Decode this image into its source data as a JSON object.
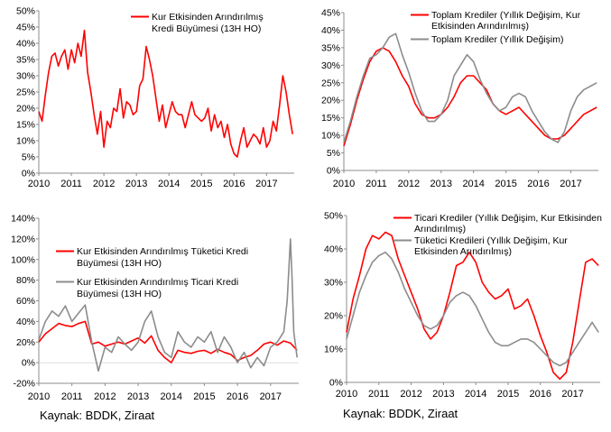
{
  "colors": {
    "red": "#FF0000",
    "gray": "#8C8C8C",
    "axis": "#8C8C8C"
  },
  "sources": {
    "left": "Kaynak: BDDK, Ziraat",
    "right": "Kaynak: BDDK, Ziraat"
  },
  "chart_data": [
    {
      "type": "line",
      "title": "",
      "xlabel": "",
      "ylabel": "",
      "x_ticks": [
        "2010",
        "2011",
        "2012",
        "2013",
        "2014",
        "2015",
        "2016",
        "2017"
      ],
      "x_range": [
        2010,
        2017.85
      ],
      "y_ticks": [
        "0%",
        "5%",
        "10%",
        "15%",
        "20%",
        "25%",
        "30%",
        "35%",
        "40%",
        "45%",
        "50%"
      ],
      "ylim": [
        0,
        50
      ],
      "grid": false,
      "legend_position": "top-right",
      "series": [
        {
          "name": "Kur Etkisinden Arındırılmış Kredi Büyümesi (13H HO)",
          "legend_lines": [
            "Kur Etkisinden Arındırılmış",
            "Kredi Büyümesi (13H HO)"
          ],
          "color": "#FF0000",
          "x": [
            2010.0,
            2010.1,
            2010.2,
            2010.3,
            2010.4,
            2010.5,
            2010.6,
            2010.7,
            2010.8,
            2010.9,
            2011.0,
            2011.1,
            2011.2,
            2011.3,
            2011.4,
            2011.5,
            2011.6,
            2011.7,
            2011.8,
            2011.9,
            2012.0,
            2012.1,
            2012.2,
            2012.3,
            2012.4,
            2012.5,
            2012.6,
            2012.7,
            2012.8,
            2012.9,
            2013.0,
            2013.1,
            2013.2,
            2013.3,
            2013.4,
            2013.5,
            2013.6,
            2013.7,
            2013.8,
            2013.9,
            2014.0,
            2014.1,
            2014.2,
            2014.3,
            2014.4,
            2014.5,
            2014.6,
            2014.7,
            2014.8,
            2014.9,
            2015.0,
            2015.1,
            2015.2,
            2015.3,
            2015.4,
            2015.5,
            2015.6,
            2015.7,
            2015.8,
            2015.9,
            2016.0,
            2016.1,
            2016.2,
            2016.3,
            2016.4,
            2016.5,
            2016.6,
            2016.7,
            2016.8,
            2016.9,
            2017.0,
            2017.1,
            2017.2,
            2017.3,
            2017.4,
            2017.5,
            2017.6,
            2017.7,
            2017.8
          ],
          "values": [
            19,
            16,
            24,
            31,
            36,
            37,
            33,
            36,
            38,
            32,
            38,
            34,
            40,
            36,
            44,
            31,
            25,
            18,
            12,
            19,
            8,
            16,
            14,
            20,
            19,
            26,
            17,
            22,
            21,
            18,
            19,
            27,
            29,
            39,
            35,
            30,
            23,
            16,
            21,
            14,
            18,
            22,
            19,
            18,
            18,
            14,
            18,
            22,
            18,
            17,
            16,
            17,
            20,
            13,
            18,
            14,
            16,
            11,
            15,
            9,
            6,
            5,
            10,
            14,
            8,
            10,
            12,
            11,
            9,
            14,
            8,
            10,
            16,
            13,
            21,
            30,
            25,
            18,
            12
          ]
        }
      ]
    },
    {
      "type": "line",
      "title": "",
      "xlabel": "",
      "ylabel": "",
      "x_ticks": [
        "2010",
        "2011",
        "2012",
        "2013",
        "2014",
        "2015",
        "2016",
        "2017"
      ],
      "x_range": [
        2010,
        2017.85
      ],
      "y_ticks": [
        "0%",
        "5%",
        "10%",
        "15%",
        "20%",
        "25%",
        "30%",
        "35%",
        "40%",
        "45%"
      ],
      "ylim": [
        0,
        45
      ],
      "grid": false,
      "legend_position": "top-right",
      "series": [
        {
          "name": "Toplam Krediler (Yıllık Değişim, Kur Etkisinden Arındırılmış)",
          "legend_lines": [
            "Toplam Krediler (Yıllık Değişim, Kur",
            "Etkisinden Arındırılmış)"
          ],
          "color": "#FF0000",
          "x": [
            2010.0,
            2010.2,
            2010.4,
            2010.6,
            2010.8,
            2011.0,
            2011.2,
            2011.4,
            2011.6,
            2011.8,
            2012.0,
            2012.2,
            2012.4,
            2012.6,
            2012.8,
            2013.0,
            2013.2,
            2013.4,
            2013.6,
            2013.8,
            2014.0,
            2014.2,
            2014.4,
            2014.6,
            2014.8,
            2015.0,
            2015.2,
            2015.4,
            2015.6,
            2015.8,
            2016.0,
            2016.2,
            2016.4,
            2016.6,
            2016.8,
            2017.0,
            2017.2,
            2017.4,
            2017.6,
            2017.8
          ],
          "values": [
            7,
            13,
            20,
            26,
            31,
            34,
            35,
            34,
            31,
            27,
            24,
            19,
            16,
            15,
            15,
            16,
            18,
            21,
            25,
            27,
            27,
            25,
            23,
            19,
            17,
            16,
            17,
            18,
            16,
            14,
            12,
            10,
            9,
            9,
            10,
            12,
            14,
            16,
            17,
            18
          ]
        },
        {
          "name": "Toplam Krediler (Yıllık Değişim)",
          "legend_lines": [
            "Toplam Krediler (Yıllık Değişim)"
          ],
          "color": "#8C8C8C",
          "x": [
            2010.0,
            2010.2,
            2010.4,
            2010.6,
            2010.8,
            2011.0,
            2011.2,
            2011.4,
            2011.6,
            2011.8,
            2012.0,
            2012.2,
            2012.4,
            2012.6,
            2012.8,
            2013.0,
            2013.2,
            2013.4,
            2013.6,
            2013.8,
            2014.0,
            2014.2,
            2014.4,
            2014.6,
            2014.8,
            2015.0,
            2015.2,
            2015.4,
            2015.6,
            2015.8,
            2016.0,
            2016.2,
            2016.4,
            2016.6,
            2016.8,
            2017.0,
            2017.2,
            2017.4,
            2017.6,
            2017.8
          ],
          "values": [
            8,
            14,
            21,
            27,
            32,
            33,
            35,
            38,
            39,
            33,
            28,
            22,
            17,
            14,
            14,
            16,
            20,
            27,
            30,
            33,
            31,
            26,
            22,
            19,
            17,
            18,
            21,
            22,
            21,
            17,
            14,
            11,
            9,
            8,
            11,
            17,
            21,
            23,
            24,
            25
          ]
        }
      ]
    },
    {
      "type": "line",
      "title": "",
      "xlabel": "",
      "ylabel": "",
      "x_ticks": [
        "2010",
        "2011",
        "2012",
        "2013",
        "2014",
        "2015",
        "2016",
        "2017"
      ],
      "x_range": [
        2010,
        2017.85
      ],
      "y_ticks": [
        "-20%",
        "0%",
        "20%",
        "40%",
        "60%",
        "80%",
        "100%",
        "120%",
        "140%"
      ],
      "ylim": [
        -20,
        140
      ],
      "grid": false,
      "legend_position": "top-right",
      "series": [
        {
          "name": "Kur Etkisinden Arındırılmış Tüketici Kredi Büyümesi (13H HO)",
          "legend_lines": [
            "Kur Etkisinden Arındırılmış Tüketici Kredi",
            "Büyümesi (13H HO)"
          ],
          "color": "#FF0000",
          "x": [
            2010.0,
            2010.2,
            2010.4,
            2010.6,
            2010.8,
            2011.0,
            2011.2,
            2011.4,
            2011.6,
            2011.8,
            2012.0,
            2012.2,
            2012.4,
            2012.6,
            2012.8,
            2013.0,
            2013.2,
            2013.4,
            2013.6,
            2013.8,
            2014.0,
            2014.2,
            2014.4,
            2014.6,
            2014.8,
            2015.0,
            2015.2,
            2015.4,
            2015.6,
            2015.8,
            2016.0,
            2016.2,
            2016.4,
            2016.6,
            2016.8,
            2017.0,
            2017.2,
            2017.4,
            2017.6,
            2017.8
          ],
          "values": [
            20,
            28,
            33,
            38,
            36,
            35,
            38,
            40,
            18,
            20,
            16,
            18,
            20,
            18,
            21,
            24,
            19,
            26,
            12,
            5,
            0,
            12,
            10,
            9,
            11,
            12,
            9,
            13,
            10,
            8,
            2,
            5,
            7,
            12,
            18,
            20,
            17,
            21,
            19,
            12
          ]
        },
        {
          "name": "Kur Etkisinden Arındırılmış Ticari Kredi Büyümesi (13H HO)",
          "legend_lines": [
            "Kur Etkisinden Arındırılmış Ticari Kredi",
            "Büyümesi (13H HO)"
          ],
          "color": "#8C8C8C",
          "x": [
            2010.0,
            2010.2,
            2010.4,
            2010.6,
            2010.8,
            2011.0,
            2011.2,
            2011.4,
            2011.6,
            2011.8,
            2012.0,
            2012.2,
            2012.4,
            2012.6,
            2012.8,
            2013.0,
            2013.2,
            2013.4,
            2013.6,
            2013.8,
            2014.0,
            2014.2,
            2014.4,
            2014.6,
            2014.8,
            2015.0,
            2015.2,
            2015.4,
            2015.6,
            2015.8,
            2016.0,
            2016.2,
            2016.4,
            2016.6,
            2016.8,
            2017.0,
            2017.2,
            2017.4,
            2017.5,
            2017.6,
            2017.65,
            2017.7,
            2017.8
          ],
          "values": [
            22,
            40,
            50,
            45,
            55,
            40,
            48,
            56,
            20,
            -8,
            15,
            10,
            25,
            18,
            12,
            20,
            40,
            50,
            25,
            10,
            5,
            30,
            20,
            15,
            25,
            20,
            30,
            10,
            25,
            15,
            0,
            10,
            -5,
            5,
            -3,
            15,
            20,
            30,
            60,
            120,
            80,
            30,
            5
          ]
        }
      ]
    },
    {
      "type": "line",
      "title": "",
      "xlabel": "",
      "ylabel": "",
      "x_ticks": [
        "2010",
        "2011",
        "2012",
        "2013",
        "2014",
        "2015",
        "2016",
        "2017"
      ],
      "x_range": [
        2010,
        2017.85
      ],
      "y_ticks": [
        "0%",
        "10%",
        "20%",
        "30%",
        "40%",
        "50%"
      ],
      "ylim": [
        0,
        50
      ],
      "grid": false,
      "legend_position": "top-right",
      "series": [
        {
          "name": "Ticari Krediler (Yıllık Değişim, Kur Etkisinden Arındırılmış)",
          "legend_lines": [
            "Ticari Krediler (Yıllık Değişim, Kur Etkisinden",
            "Arındırılmış)"
          ],
          "color": "#FF0000",
          "x": [
            2010.0,
            2010.2,
            2010.4,
            2010.6,
            2010.8,
            2011.0,
            2011.2,
            2011.4,
            2011.6,
            2011.8,
            2012.0,
            2012.2,
            2012.4,
            2012.6,
            2012.8,
            2013.0,
            2013.2,
            2013.4,
            2013.6,
            2013.8,
            2014.0,
            2014.2,
            2014.4,
            2014.6,
            2014.8,
            2015.0,
            2015.2,
            2015.4,
            2015.6,
            2015.8,
            2016.0,
            2016.2,
            2016.4,
            2016.6,
            2016.8,
            2017.0,
            2017.2,
            2017.4,
            2017.6,
            2017.8
          ],
          "values": [
            15,
            25,
            32,
            40,
            44,
            43,
            45,
            44,
            37,
            32,
            27,
            22,
            16,
            13,
            15,
            20,
            27,
            35,
            36,
            39,
            36,
            30,
            27,
            25,
            26,
            28,
            22,
            23,
            25,
            20,
            14,
            9,
            3,
            1,
            3,
            12,
            24,
            36,
            37,
            35
          ]
        },
        {
          "name": "Tüketici Kredileri (Yıllık Değişim, Kur Etkisinden Arındırılmış)",
          "legend_lines": [
            "Tüketici Kredileri (Yıllık Değişim, Kur",
            "Etkisinden Arındırılmış)"
          ],
          "color": "#8C8C8C",
          "x": [
            2010.0,
            2010.2,
            2010.4,
            2010.6,
            2010.8,
            2011.0,
            2011.2,
            2011.4,
            2011.6,
            2011.8,
            2012.0,
            2012.2,
            2012.4,
            2012.6,
            2012.8,
            2013.0,
            2013.2,
            2013.4,
            2013.6,
            2013.8,
            2014.0,
            2014.2,
            2014.4,
            2014.6,
            2014.8,
            2015.0,
            2015.2,
            2015.4,
            2015.6,
            2015.8,
            2016.0,
            2016.2,
            2016.4,
            2016.6,
            2016.8,
            2017.0,
            2017.2,
            2017.4,
            2017.6,
            2017.8
          ],
          "values": [
            13,
            20,
            27,
            32,
            36,
            38,
            39,
            37,
            33,
            28,
            24,
            20,
            17,
            16,
            17,
            20,
            24,
            26,
            27,
            26,
            23,
            19,
            15,
            12,
            11,
            11,
            12,
            13,
            13,
            12,
            10,
            8,
            6,
            5,
            6,
            9,
            12,
            15,
            18,
            15
          ]
        }
      ]
    }
  ]
}
